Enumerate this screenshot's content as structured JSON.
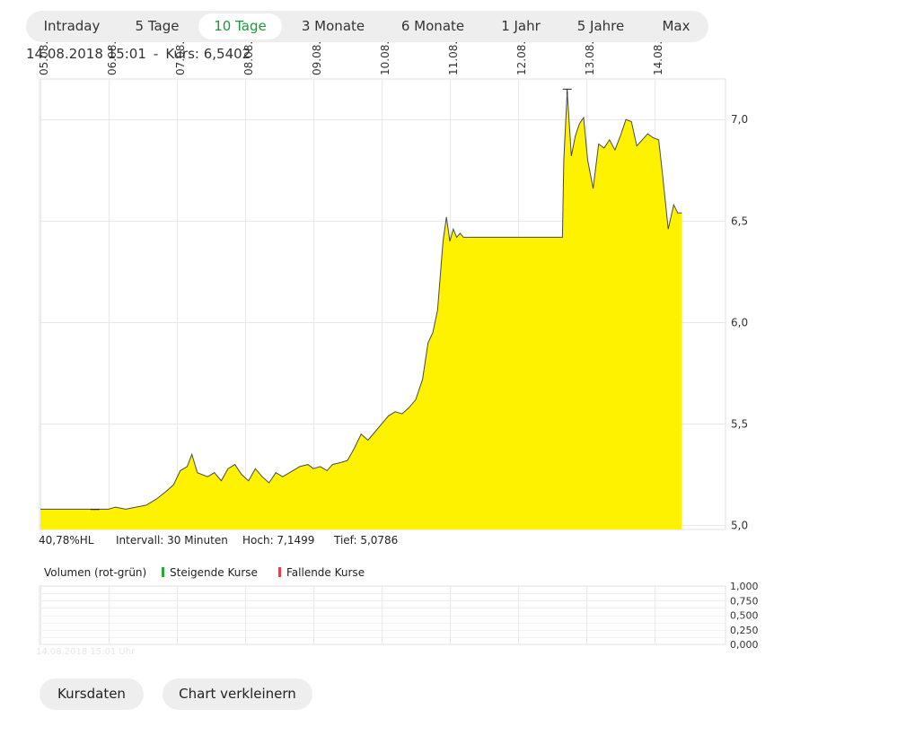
{
  "tabs": [
    {
      "label": "Intraday"
    },
    {
      "label": "5 Tage"
    },
    {
      "label": "10 Tage",
      "active": true
    },
    {
      "label": "3 Monate"
    },
    {
      "label": "6 Monate"
    },
    {
      "label": "1 Jahr"
    },
    {
      "label": "5 Jahre"
    },
    {
      "label": "Max"
    }
  ],
  "header": {
    "datetime": "14.08.2018 15:01",
    "separator": "-",
    "kurs": "Kurs: 6,5402"
  },
  "stats": {
    "hl": "40,78%HL",
    "interval": "Intervall: 30 Minuten",
    "high": "Hoch: 7,1499",
    "low": "Tief: 5,0786"
  },
  "volume_legend": {
    "title": "Volumen (rot-grün)",
    "rising": "Steigende Kurse",
    "falling": "Fallende Kurse"
  },
  "watermark": "14.08.2018 15:01 Uhr",
  "buttons": {
    "kursdaten": "Kursdaten",
    "shrink": "Chart verkleinern"
  },
  "colors": {
    "area_fill": "#fff200",
    "line": "#4a4a4a",
    "grid": "#e8e8e8",
    "active_tab": "#1a9a3a",
    "rising": "#22aa33",
    "falling": "#e8404a"
  },
  "chart_data": [
    {
      "type": "area",
      "x_ticks": [
        "05.08.",
        "06.08.",
        "07.08.",
        "08.08.",
        "09.08.",
        "10.08.",
        "11.08.",
        "12.08.",
        "13.08.",
        "14.08."
      ],
      "y_ticks": [
        "5,0",
        "5,5",
        "6,0",
        "6,5",
        "7,0"
      ],
      "ylim": [
        4.98,
        7.2
      ],
      "high": 7.1499,
      "low": 5.0786,
      "series": [
        {
          "points": [
            [
              0.0,
              5.08
            ],
            [
              1.0,
              5.08
            ],
            [
              1.1,
              5.09
            ],
            [
              1.25,
              5.08
            ],
            [
              1.4,
              5.09
            ],
            [
              1.55,
              5.1
            ],
            [
              1.7,
              5.13
            ],
            [
              1.85,
              5.17
            ],
            [
              1.95,
              5.2
            ],
            [
              2.05,
              5.27
            ],
            [
              2.15,
              5.29
            ],
            [
              2.22,
              5.35
            ],
            [
              2.3,
              5.26
            ],
            [
              2.45,
              5.24
            ],
            [
              2.55,
              5.26
            ],
            [
              2.65,
              5.22
            ],
            [
              2.75,
              5.28
            ],
            [
              2.85,
              5.3
            ],
            [
              2.95,
              5.25
            ],
            [
              3.05,
              5.22
            ],
            [
              3.15,
              5.28
            ],
            [
              3.25,
              5.24
            ],
            [
              3.35,
              5.21
            ],
            [
              3.45,
              5.26
            ],
            [
              3.55,
              5.24
            ],
            [
              3.7,
              5.27
            ],
            [
              3.8,
              5.29
            ],
            [
              3.92,
              5.3
            ],
            [
              4.0,
              5.28
            ],
            [
              4.1,
              5.29
            ],
            [
              4.2,
              5.27
            ],
            [
              4.28,
              5.3
            ],
            [
              4.4,
              5.31
            ],
            [
              4.5,
              5.32
            ],
            [
              4.6,
              5.38
            ],
            [
              4.7,
              5.45
            ],
            [
              4.8,
              5.42
            ],
            [
              4.9,
              5.46
            ],
            [
              5.0,
              5.5
            ],
            [
              5.1,
              5.54
            ],
            [
              5.2,
              5.56
            ],
            [
              5.3,
              5.55
            ],
            [
              5.4,
              5.58
            ],
            [
              5.5,
              5.62
            ],
            [
              5.6,
              5.72
            ],
            [
              5.68,
              5.9
            ],
            [
              5.75,
              5.95
            ],
            [
              5.82,
              6.06
            ],
            [
              5.9,
              6.4
            ],
            [
              5.95,
              6.52
            ],
            [
              6.0,
              6.4
            ],
            [
              6.05,
              6.46
            ],
            [
              6.1,
              6.42
            ],
            [
              6.15,
              6.44
            ],
            [
              6.2,
              6.42
            ],
            [
              6.4,
              6.42
            ],
            [
              6.8,
              6.42
            ],
            [
              7.2,
              6.42
            ],
            [
              7.5,
              6.42
            ],
            [
              7.65,
              6.42
            ],
            [
              7.67,
              6.8
            ],
            [
              7.72,
              7.14
            ],
            [
              7.78,
              6.82
            ],
            [
              7.84,
              6.92
            ],
            [
              7.9,
              6.98
            ],
            [
              7.96,
              7.01
            ],
            [
              8.02,
              6.8
            ],
            [
              8.1,
              6.66
            ],
            [
              8.18,
              6.88
            ],
            [
              8.26,
              6.86
            ],
            [
              8.34,
              6.9
            ],
            [
              8.42,
              6.85
            ],
            [
              8.5,
              6.92
            ],
            [
              8.58,
              7.0
            ],
            [
              8.66,
              6.99
            ],
            [
              8.74,
              6.87
            ],
            [
              8.82,
              6.9
            ],
            [
              8.9,
              6.93
            ],
            [
              8.98,
              6.91
            ],
            [
              9.06,
              6.9
            ],
            [
              9.12,
              6.72
            ],
            [
              9.2,
              6.46
            ],
            [
              9.28,
              6.58
            ],
            [
              9.34,
              6.54
            ],
            [
              9.4,
              6.54
            ]
          ]
        }
      ]
    },
    {
      "type": "bar",
      "title": "Volumen (rot-grün)",
      "y_ticks": [
        "1,000",
        "0,750",
        "0,500",
        "0,250",
        "0,000"
      ],
      "ylim": [
        0,
        1
      ],
      "series": []
    }
  ]
}
